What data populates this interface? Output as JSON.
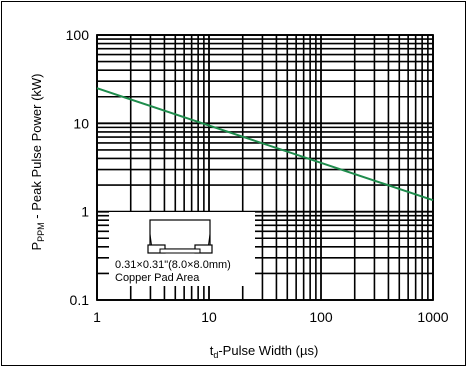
{
  "chart_data": {
    "type": "line",
    "title": "",
    "xlabel": {
      "main": "t",
      "sub": "d",
      "rest": "-Pulse Width (µs)"
    },
    "ylabel": {
      "main": "P",
      "sub": "PPM",
      "rest": " - Peak Pulse Power (kW)"
    },
    "xscale": "log",
    "yscale": "log",
    "xlim": [
      1,
      1000
    ],
    "ylim": [
      0.1,
      100
    ],
    "x_ticks": [
      {
        "value": 1,
        "label": "1"
      },
      {
        "value": 10,
        "label": "10"
      },
      {
        "value": 100,
        "label": "100"
      },
      {
        "value": 1000,
        "label": "1000"
      }
    ],
    "y_ticks": [
      {
        "value": 0.1,
        "label": "0.1"
      },
      {
        "value": 1,
        "label": "1"
      },
      {
        "value": 10,
        "label": "10"
      },
      {
        "value": 100,
        "label": "100"
      }
    ],
    "grid": true,
    "series": [
      {
        "color": "#1e8c4c",
        "x": [
          1,
          1000
        ],
        "y": [
          25,
          1.35
        ]
      }
    ],
    "inset": {
      "line1": "0.31×0.31\"(8.0×8.0mm)",
      "line2": "Copper Pad Area"
    }
  }
}
